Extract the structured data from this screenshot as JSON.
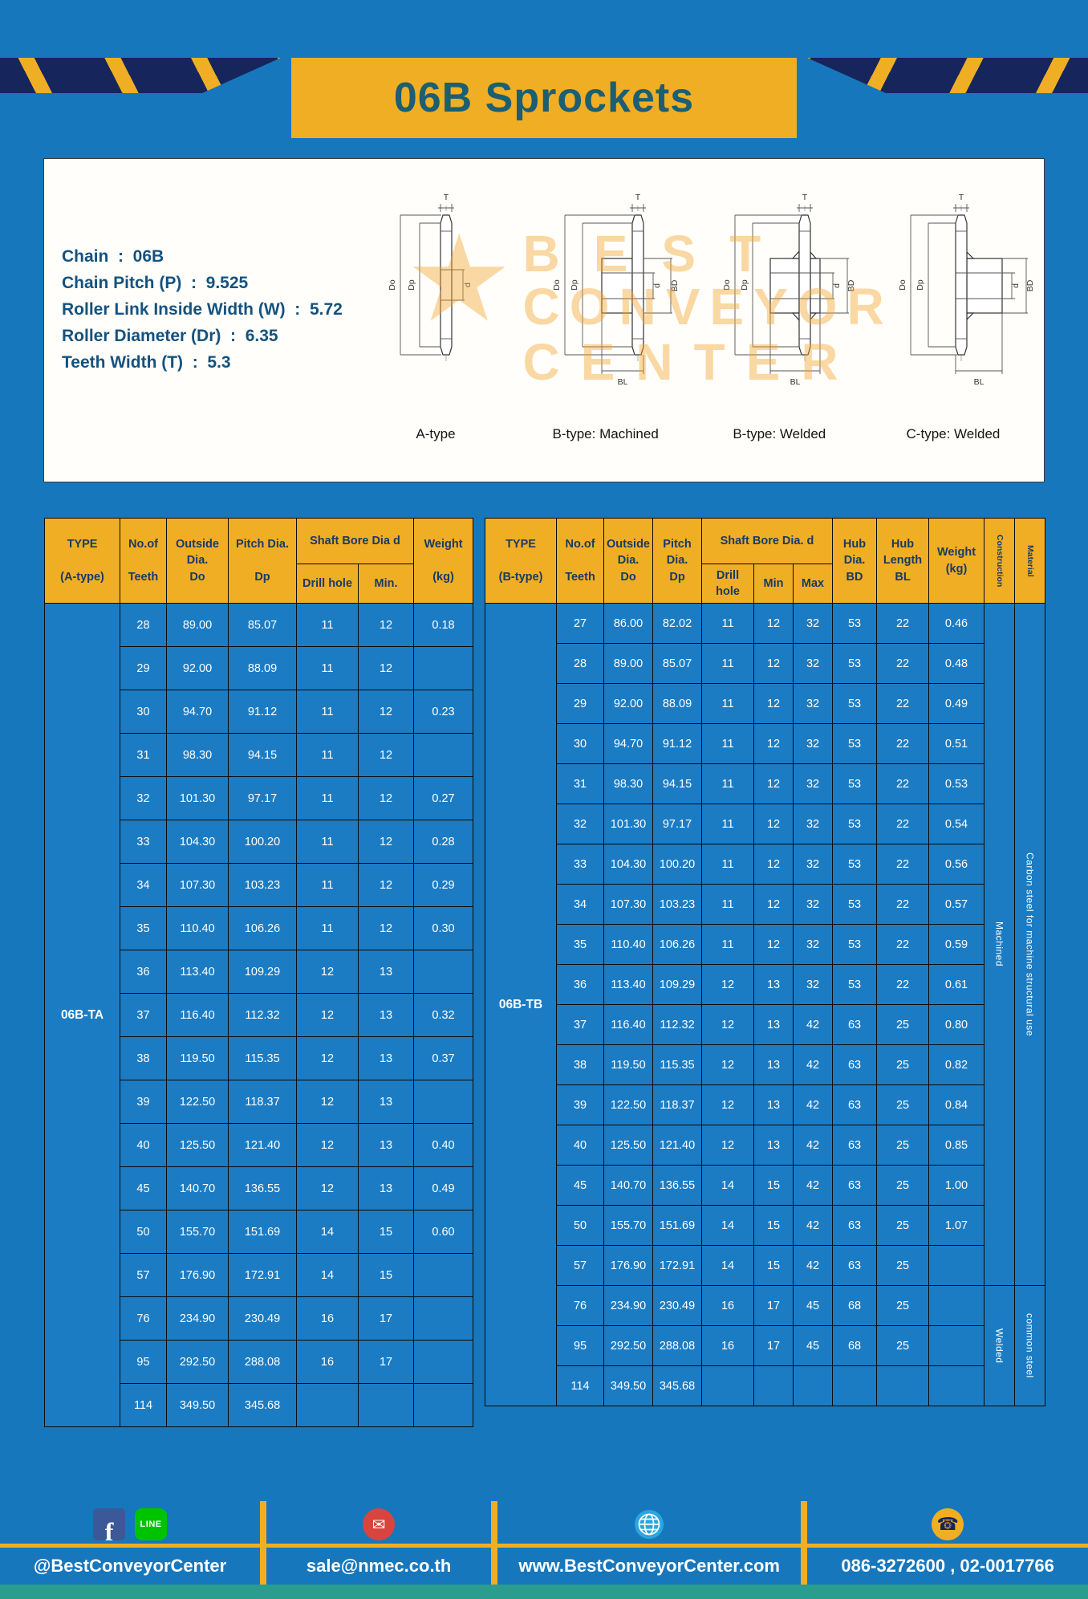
{
  "title": "06B Sprockets",
  "colors": {
    "pageBlue": "#1777bd",
    "accentYellow": "#f0ae24",
    "titleTeal": "#1c5f72",
    "headerText": "#173a66",
    "cellBlue": "#1b7cc4",
    "specText": "#14527e",
    "tealStrip": "#2a9d8f"
  },
  "specs": {
    "lines": [
      "Chain  :  06B",
      "Chain Pitch (P)  :  9.525",
      "Roller Link Inside Width (W)  :  5.72",
      "Roller Diameter (Dr)  :  6.35",
      "Teeth Width (T)  :  5.3"
    ]
  },
  "watermark": {
    "star": "★",
    "line1": "BEST",
    "line2": "CONVEYOR",
    "line3": "CENTER"
  },
  "diagrams": [
    {
      "caption": "A-type",
      "t": "T",
      "do": "Do",
      "dp": "Dp",
      "d": "d"
    },
    {
      "caption": "B-type: Machined",
      "t": "T",
      "do": "Do",
      "dp": "Dp",
      "d": "d",
      "bd": "BD",
      "bl": "BL"
    },
    {
      "caption": "B-type: Welded",
      "t": "T",
      "do": "Do",
      "dp": "Dp",
      "d": "d",
      "bd": "BD",
      "bl": "BL"
    },
    {
      "caption": "C-type: Welded",
      "t": "T",
      "do": "Do",
      "dp": "Dp",
      "d": "d",
      "bd": "BD",
      "bl": "BL"
    }
  ],
  "table_a": {
    "header": {
      "type": [
        "TYPE",
        "",
        "(A-type)"
      ],
      "teeth": [
        "No.of",
        "",
        "Teeth"
      ],
      "outside": [
        "Outside",
        "Dia.",
        "Do"
      ],
      "pitch": [
        "Pitch Dia.",
        "",
        "Dp"
      ],
      "bore_group": "Shaft Bore Dia d",
      "bore_cols": [
        "Drill hole",
        "Min."
      ],
      "weight": [
        "Weight",
        "",
        "(kg)"
      ]
    },
    "type_value": "06B-TA",
    "rows": [
      [
        "28",
        "89.00",
        "85.07",
        "11",
        "12",
        "0.18"
      ],
      [
        "29",
        "92.00",
        "88.09",
        "11",
        "12",
        ""
      ],
      [
        "30",
        "94.70",
        "91.12",
        "11",
        "12",
        "0.23"
      ],
      [
        "31",
        "98.30",
        "94.15",
        "11",
        "12",
        ""
      ],
      [
        "32",
        "101.30",
        "97.17",
        "11",
        "12",
        "0.27"
      ],
      [
        "33",
        "104.30",
        "100.20",
        "11",
        "12",
        "0.28"
      ],
      [
        "34",
        "107.30",
        "103.23",
        "11",
        "12",
        "0.29"
      ],
      [
        "35",
        "110.40",
        "106.26",
        "11",
        "12",
        "0.30"
      ],
      [
        "36",
        "113.40",
        "109.29",
        "12",
        "13",
        ""
      ],
      [
        "37",
        "116.40",
        "112.32",
        "12",
        "13",
        "0.32"
      ],
      [
        "38",
        "119.50",
        "115.35",
        "12",
        "13",
        "0.37"
      ],
      [
        "39",
        "122.50",
        "118.37",
        "12",
        "13",
        ""
      ],
      [
        "40",
        "125.50",
        "121.40",
        "12",
        "13",
        "0.40"
      ],
      [
        "45",
        "140.70",
        "136.55",
        "12",
        "13",
        "0.49"
      ],
      [
        "50",
        "155.70",
        "151.69",
        "14",
        "15",
        "0.60"
      ],
      [
        "57",
        "176.90",
        "172.91",
        "14",
        "15",
        ""
      ],
      [
        "76",
        "234.90",
        "230.49",
        "16",
        "17",
        ""
      ],
      [
        "95",
        "292.50",
        "288.08",
        "16",
        "17",
        ""
      ],
      [
        "114",
        "349.50",
        "345.68",
        "",
        "",
        ""
      ]
    ]
  },
  "table_b": {
    "header": {
      "type": [
        "TYPE",
        "",
        "(B-type)"
      ],
      "teeth": [
        "No.of",
        "",
        "Teeth"
      ],
      "outside": [
        "Outside",
        "Dia.",
        "Do"
      ],
      "pitch": [
        "Pitch",
        "Dia.",
        "Dp"
      ],
      "bore_group": "Shaft Bore Dia. d",
      "bore_cols": [
        "Drill hole",
        "Min",
        "Max"
      ],
      "hub_dia": [
        "Hub",
        "Dia.",
        "BD"
      ],
      "hub_len": [
        "Hub",
        "Length",
        "BL"
      ],
      "weight": [
        "Weight",
        "(kg)"
      ],
      "construction": "Construction",
      "material": "Material"
    },
    "type_value": "06B-TB",
    "construction_groups": [
      {
        "label": "Machined",
        "rows": 17
      },
      {
        "label": "Welded",
        "rows": 3
      }
    ],
    "material_groups": [
      {
        "label": "Carbon steel for machine structural use",
        "rows": 17
      },
      {
        "label": "common steel",
        "rows": 3
      }
    ],
    "rows": [
      [
        "27",
        "86.00",
        "82.02",
        "11",
        "12",
        "32",
        "53",
        "22",
        "0.46"
      ],
      [
        "28",
        "89.00",
        "85.07",
        "11",
        "12",
        "32",
        "53",
        "22",
        "0.48"
      ],
      [
        "29",
        "92.00",
        "88.09",
        "11",
        "12",
        "32",
        "53",
        "22",
        "0.49"
      ],
      [
        "30",
        "94.70",
        "91.12",
        "11",
        "12",
        "32",
        "53",
        "22",
        "0.51"
      ],
      [
        "31",
        "98.30",
        "94.15",
        "11",
        "12",
        "32",
        "53",
        "22",
        "0.53"
      ],
      [
        "32",
        "101.30",
        "97.17",
        "11",
        "12",
        "32",
        "53",
        "22",
        "0.54"
      ],
      [
        "33",
        "104.30",
        "100.20",
        "11",
        "12",
        "32",
        "53",
        "22",
        "0.56"
      ],
      [
        "34",
        "107.30",
        "103.23",
        "11",
        "12",
        "32",
        "53",
        "22",
        "0.57"
      ],
      [
        "35",
        "110.40",
        "106.26",
        "11",
        "12",
        "32",
        "53",
        "22",
        "0.59"
      ],
      [
        "36",
        "113.40",
        "109.29",
        "12",
        "13",
        "32",
        "53",
        "22",
        "0.61"
      ],
      [
        "37",
        "116.40",
        "112.32",
        "12",
        "13",
        "42",
        "63",
        "25",
        "0.80"
      ],
      [
        "38",
        "119.50",
        "115.35",
        "12",
        "13",
        "42",
        "63",
        "25",
        "0.82"
      ],
      [
        "39",
        "122.50",
        "118.37",
        "12",
        "13",
        "42",
        "63",
        "25",
        "0.84"
      ],
      [
        "40",
        "125.50",
        "121.40",
        "12",
        "13",
        "42",
        "63",
        "25",
        "0.85"
      ],
      [
        "45",
        "140.70",
        "136.55",
        "14",
        "15",
        "42",
        "63",
        "25",
        "1.00"
      ],
      [
        "50",
        "155.70",
        "151.69",
        "14",
        "15",
        "42",
        "63",
        "25",
        "1.07"
      ],
      [
        "57",
        "176.90",
        "172.91",
        "14",
        "15",
        "42",
        "63",
        "25",
        ""
      ],
      [
        "76",
        "234.90",
        "230.49",
        "16",
        "17",
        "45",
        "68",
        "25",
        ""
      ],
      [
        "95",
        "292.50",
        "288.08",
        "16",
        "17",
        "45",
        "68",
        "25",
        ""
      ],
      [
        "114",
        "349.50",
        "345.68",
        "",
        "",
        "",
        "",
        "",
        ""
      ]
    ]
  },
  "footer": {
    "sections": [
      {
        "text": "@BestConveyorCenter"
      },
      {
        "text": "sale@nmec.co.th"
      },
      {
        "text": "www.BestConveyorCenter.com"
      },
      {
        "text": "086-3272600 , 02-0017766"
      }
    ],
    "facebook_letter": "f",
    "line_badge": "LINE",
    "mail_glyph": "✉",
    "phone_glyph": "☎"
  }
}
